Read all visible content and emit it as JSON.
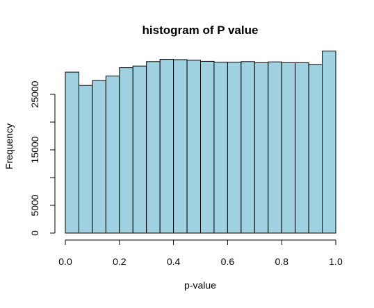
{
  "chart_data": {
    "type": "bar",
    "subtype": "histogram",
    "title": "histogram of P value",
    "xlabel": "p-value",
    "ylabel": "Frequency",
    "xlim": [
      0,
      1
    ],
    "ylim": [
      0,
      30000
    ],
    "x_ticks": [
      "0.0",
      "0.2",
      "0.4",
      "0.6",
      "0.8",
      "1.0"
    ],
    "y_ticks": [
      "0",
      "5000",
      "15000",
      "25000"
    ],
    "bin_edges": [
      0.0,
      0.05,
      0.1,
      0.15,
      0.2,
      0.25,
      0.3,
      0.35,
      0.4,
      0.45,
      0.5,
      0.55,
      0.6,
      0.65,
      0.7,
      0.75,
      0.8,
      0.85,
      0.9,
      0.95,
      1.0
    ],
    "values": [
      29000,
      26600,
      27500,
      28300,
      29800,
      30100,
      30900,
      31300,
      31250,
      31150,
      30950,
      30800,
      30800,
      30900,
      30700,
      30850,
      30700,
      30700,
      30400,
      32800
    ],
    "bar_color": "#9fd1e1",
    "edge_color": "#000000",
    "grid": false
  }
}
